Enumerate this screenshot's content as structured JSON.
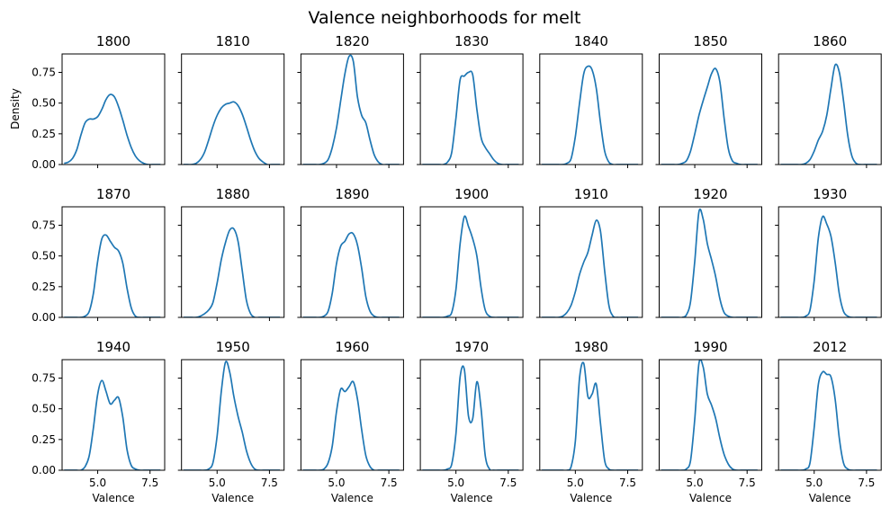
{
  "chart_data": {
    "type": "line",
    "title": "Valence neighborhoods for melt",
    "ylabel": "Density",
    "xlabel": "Valence",
    "xlim": [
      3.3,
      8.2
    ],
    "ylim": [
      0,
      0.9
    ],
    "xticks": [
      5.0,
      7.5
    ],
    "xtick_labels": [
      "5.0",
      "7.5"
    ],
    "yticks": [
      0.0,
      0.25,
      0.5,
      0.75
    ],
    "ytick_labels": [
      "0.00",
      "0.25",
      "0.50",
      "0.75"
    ],
    "grid": false,
    "layout": {
      "rows": 3,
      "cols": 7
    },
    "x": [
      3.4,
      3.6,
      3.8,
      4.0,
      4.2,
      4.4,
      4.6,
      4.8,
      5.0,
      5.2,
      5.4,
      5.6,
      5.8,
      6.0,
      6.2,
      6.4,
      6.6,
      6.8,
      7.0,
      7.2,
      7.4,
      7.6,
      7.8,
      8.0
    ],
    "panels": [
      {
        "label": "1800",
        "values": [
          0.01,
          0.02,
          0.05,
          0.12,
          0.24,
          0.34,
          0.37,
          0.37,
          0.39,
          0.45,
          0.53,
          0.57,
          0.55,
          0.47,
          0.36,
          0.24,
          0.14,
          0.07,
          0.03,
          0.01,
          0.0,
          0.0,
          0.0,
          0.0
        ]
      },
      {
        "label": "1810",
        "values": [
          0.0,
          0.0,
          0.0,
          0.01,
          0.04,
          0.1,
          0.2,
          0.31,
          0.4,
          0.46,
          0.49,
          0.5,
          0.51,
          0.48,
          0.41,
          0.31,
          0.2,
          0.11,
          0.05,
          0.02,
          0.0,
          0.0,
          0.0,
          0.0
        ]
      },
      {
        "label": "1820",
        "values": [
          0.0,
          0.0,
          0.0,
          0.0,
          0.0,
          0.01,
          0.04,
          0.14,
          0.3,
          0.52,
          0.74,
          0.88,
          0.84,
          0.55,
          0.4,
          0.34,
          0.2,
          0.08,
          0.02,
          0.0,
          0.0,
          0.0,
          0.0,
          0.0
        ]
      },
      {
        "label": "1830",
        "values": [
          0.0,
          0.0,
          0.0,
          0.0,
          0.0,
          0.0,
          0.02,
          0.1,
          0.38,
          0.69,
          0.72,
          0.75,
          0.73,
          0.45,
          0.22,
          0.14,
          0.09,
          0.04,
          0.01,
          0.0,
          0.0,
          0.0,
          0.0,
          0.0
        ]
      },
      {
        "label": "1840",
        "values": [
          0.0,
          0.0,
          0.0,
          0.0,
          0.0,
          0.0,
          0.01,
          0.05,
          0.23,
          0.5,
          0.74,
          0.8,
          0.77,
          0.62,
          0.34,
          0.11,
          0.02,
          0.0,
          0.0,
          0.0,
          0.0,
          0.0,
          0.0,
          0.0
        ]
      },
      {
        "label": "1850",
        "values": [
          0.0,
          0.0,
          0.0,
          0.0,
          0.0,
          0.01,
          0.03,
          0.11,
          0.25,
          0.4,
          0.52,
          0.63,
          0.74,
          0.78,
          0.67,
          0.38,
          0.13,
          0.03,
          0.01,
          0.0,
          0.0,
          0.0,
          0.0,
          0.0
        ]
      },
      {
        "label": "1860",
        "values": [
          0.0,
          0.0,
          0.0,
          0.0,
          0.0,
          0.0,
          0.01,
          0.04,
          0.11,
          0.2,
          0.27,
          0.4,
          0.62,
          0.81,
          0.75,
          0.52,
          0.24,
          0.07,
          0.01,
          0.0,
          0.0,
          0.0,
          0.0,
          0.0
        ]
      },
      {
        "label": "1870",
        "values": [
          0.0,
          0.0,
          0.0,
          0.0,
          0.0,
          0.01,
          0.05,
          0.2,
          0.46,
          0.64,
          0.67,
          0.62,
          0.57,
          0.54,
          0.44,
          0.24,
          0.08,
          0.01,
          0.0,
          0.0,
          0.0,
          0.0,
          0.0,
          0.0
        ]
      },
      {
        "label": "1880",
        "values": [
          0.0,
          0.0,
          0.0,
          0.0,
          0.01,
          0.03,
          0.06,
          0.12,
          0.28,
          0.47,
          0.61,
          0.71,
          0.72,
          0.62,
          0.38,
          0.14,
          0.03,
          0.0,
          0.0,
          0.0,
          0.0,
          0.0,
          0.0,
          0.0
        ]
      },
      {
        "label": "1890",
        "values": [
          0.0,
          0.0,
          0.0,
          0.0,
          0.0,
          0.01,
          0.05,
          0.2,
          0.44,
          0.58,
          0.62,
          0.68,
          0.68,
          0.59,
          0.4,
          0.17,
          0.05,
          0.01,
          0.0,
          0.0,
          0.0,
          0.0,
          0.0,
          0.0
        ]
      },
      {
        "label": "1900",
        "values": [
          0.0,
          0.0,
          0.0,
          0.0,
          0.0,
          0.0,
          0.01,
          0.04,
          0.23,
          0.6,
          0.82,
          0.74,
          0.64,
          0.5,
          0.24,
          0.06,
          0.01,
          0.0,
          0.0,
          0.0,
          0.0,
          0.0,
          0.0,
          0.0
        ]
      },
      {
        "label": "1910",
        "values": [
          0.0,
          0.0,
          0.0,
          0.0,
          0.0,
          0.01,
          0.04,
          0.1,
          0.21,
          0.35,
          0.45,
          0.53,
          0.67,
          0.79,
          0.7,
          0.38,
          0.1,
          0.01,
          0.0,
          0.0,
          0.0,
          0.0,
          0.0,
          0.0
        ]
      },
      {
        "label": "1920",
        "values": [
          0.0,
          0.0,
          0.0,
          0.0,
          0.0,
          0.0,
          0.02,
          0.13,
          0.46,
          0.86,
          0.8,
          0.6,
          0.47,
          0.33,
          0.15,
          0.04,
          0.01,
          0.0,
          0.0,
          0.0,
          0.0,
          0.0,
          0.0,
          0.0
        ]
      },
      {
        "label": "1930",
        "values": [
          0.0,
          0.0,
          0.0,
          0.0,
          0.0,
          0.0,
          0.01,
          0.06,
          0.3,
          0.65,
          0.82,
          0.76,
          0.66,
          0.45,
          0.19,
          0.05,
          0.01,
          0.0,
          0.0,
          0.0,
          0.0,
          0.0,
          0.0,
          0.0
        ]
      },
      {
        "label": "1940",
        "values": [
          0.0,
          0.0,
          0.0,
          0.0,
          0.0,
          0.03,
          0.12,
          0.35,
          0.62,
          0.73,
          0.64,
          0.54,
          0.57,
          0.59,
          0.43,
          0.17,
          0.04,
          0.01,
          0.0,
          0.0,
          0.0,
          0.0,
          0.0,
          0.0
        ]
      },
      {
        "label": "1950",
        "values": [
          0.0,
          0.0,
          0.0,
          0.0,
          0.0,
          0.0,
          0.01,
          0.06,
          0.28,
          0.64,
          0.88,
          0.8,
          0.6,
          0.44,
          0.31,
          0.16,
          0.06,
          0.01,
          0.0,
          0.0,
          0.0,
          0.0,
          0.0,
          0.0
        ]
      },
      {
        "label": "1960",
        "values": [
          0.0,
          0.0,
          0.0,
          0.0,
          0.0,
          0.01,
          0.06,
          0.2,
          0.48,
          0.66,
          0.64,
          0.68,
          0.72,
          0.58,
          0.33,
          0.12,
          0.03,
          0.0,
          0.0,
          0.0,
          0.0,
          0.0,
          0.0,
          0.0
        ]
      },
      {
        "label": "1970",
        "values": [
          0.0,
          0.0,
          0.0,
          0.0,
          0.0,
          0.0,
          0.01,
          0.05,
          0.3,
          0.76,
          0.82,
          0.44,
          0.42,
          0.72,
          0.5,
          0.12,
          0.01,
          0.0,
          0.0,
          0.0,
          0.0,
          0.0,
          0.0,
          0.0
        ]
      },
      {
        "label": "1980",
        "values": [
          0.0,
          0.0,
          0.0,
          0.0,
          0.0,
          0.0,
          0.0,
          0.03,
          0.24,
          0.75,
          0.87,
          0.6,
          0.62,
          0.7,
          0.38,
          0.08,
          0.01,
          0.0,
          0.0,
          0.0,
          0.0,
          0.0,
          0.0,
          0.0
        ]
      },
      {
        "label": "1990",
        "values": [
          0.0,
          0.0,
          0.0,
          0.0,
          0.0,
          0.0,
          0.01,
          0.08,
          0.42,
          0.87,
          0.84,
          0.62,
          0.53,
          0.42,
          0.26,
          0.13,
          0.05,
          0.01,
          0.0,
          0.0,
          0.0,
          0.0,
          0.0,
          0.0
        ]
      },
      {
        "label": "2012",
        "values": [
          0.0,
          0.0,
          0.0,
          0.0,
          0.0,
          0.0,
          0.01,
          0.06,
          0.35,
          0.7,
          0.8,
          0.78,
          0.76,
          0.58,
          0.26,
          0.06,
          0.01,
          0.0,
          0.0,
          0.0,
          0.0,
          0.0,
          0.0,
          0.0
        ]
      }
    ]
  }
}
